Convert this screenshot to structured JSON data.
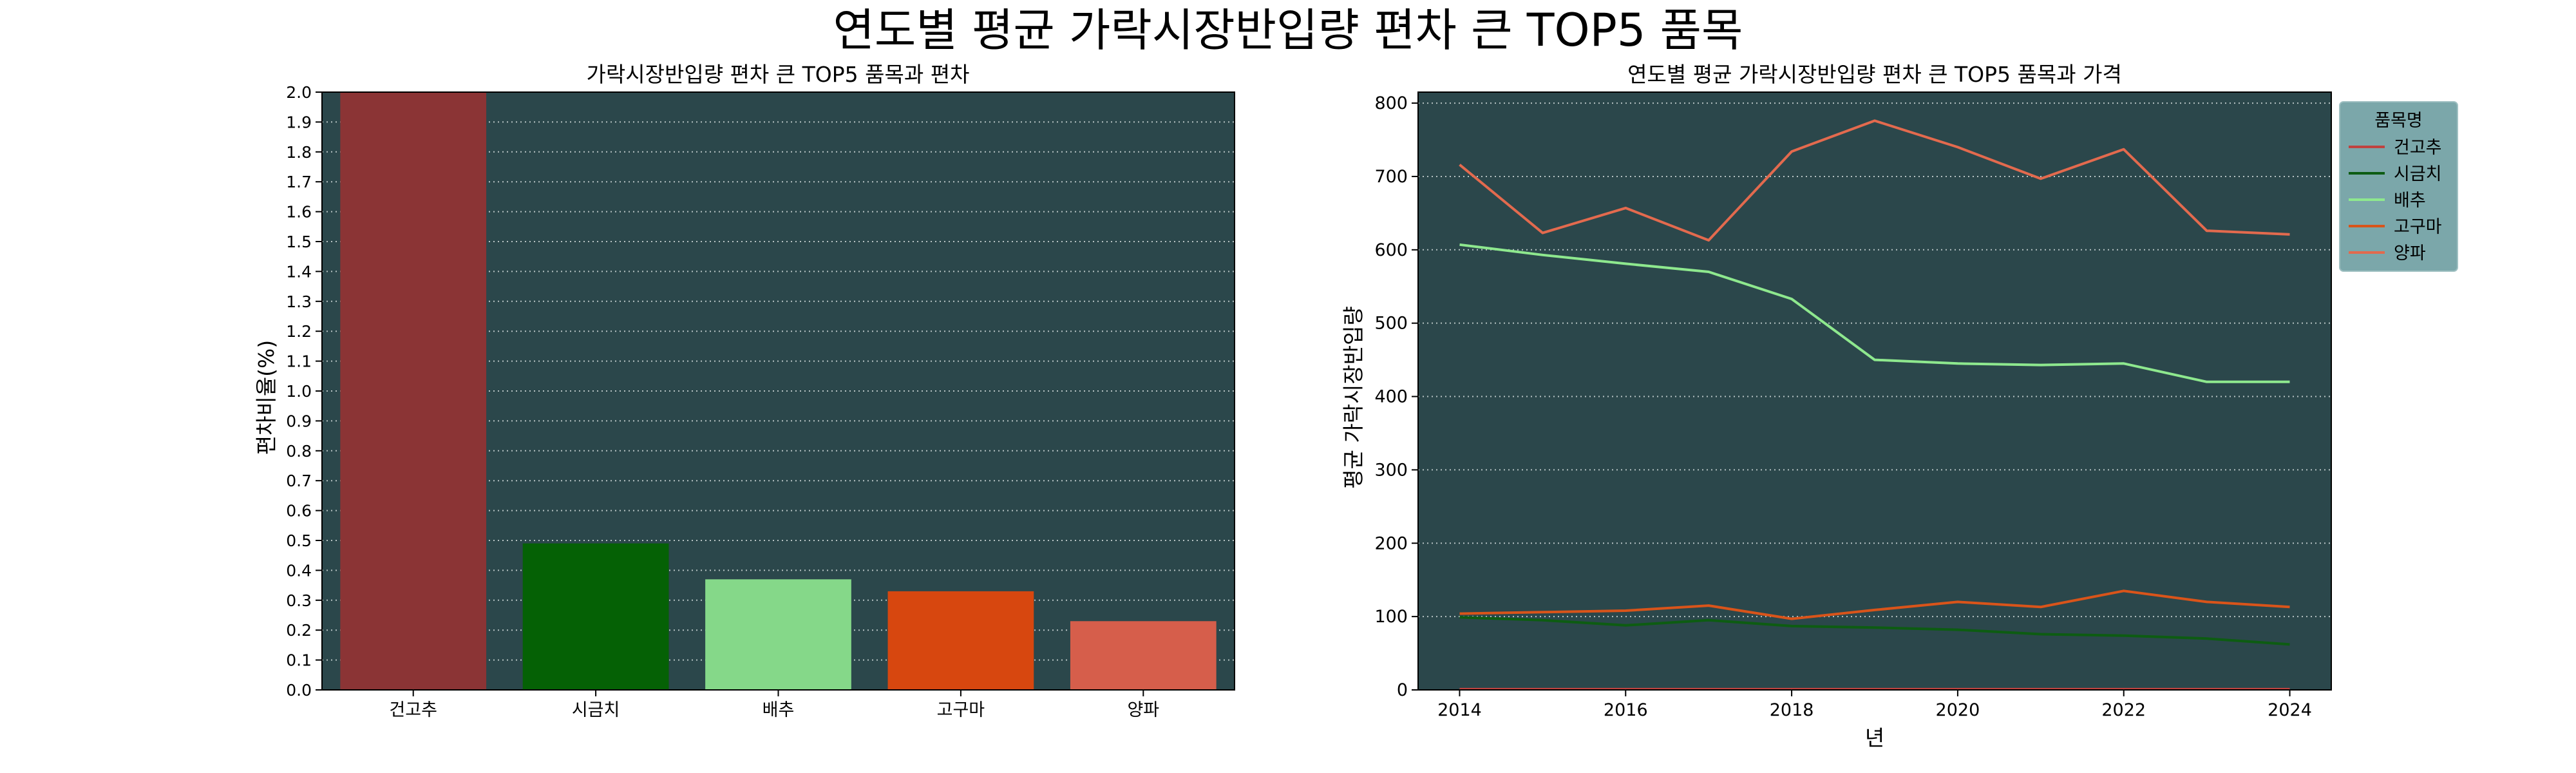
{
  "figure": {
    "title": "연도별 평균 가락시장반입량 편차 큰 TOP5 품목",
    "background": "#ffffff",
    "panel_background": "#2b474b",
    "grid_color": "#c8d2d2",
    "legend_background": "#7ba7aa"
  },
  "chart_data": [
    {
      "type": "bar",
      "title": "가락시장반입량 편차 큰 TOP5 품목과 편차",
      "xlabel": "",
      "ylabel": "편차비율(%)",
      "categories": [
        "건고추",
        "시금치",
        "배추",
        "고구마",
        "양파"
      ],
      "values": [
        2.0,
        0.49,
        0.37,
        0.33,
        0.23
      ],
      "colors": [
        "#8b3435",
        "#056105",
        "#85d889",
        "#d7470f",
        "#d65e4b"
      ],
      "ylim": [
        0,
        2.0
      ],
      "yticks": [
        "0.0",
        "0.1",
        "0.2",
        "0.3",
        "0.4",
        "0.5",
        "0.6",
        "0.7",
        "0.8",
        "0.9",
        "1.0",
        "1.1",
        "1.2",
        "1.3",
        "1.4",
        "1.5",
        "1.6",
        "1.7",
        "1.8",
        "1.9",
        "2.0"
      ],
      "grid": "y-dotted"
    },
    {
      "type": "line",
      "title": "연도별 평균 가락시장반입량 편차 큰 TOP5 품목과 가격",
      "xlabel": "년",
      "ylabel": "평균 가락시장반입량",
      "x": [
        2014,
        2015,
        2016,
        2017,
        2018,
        2019,
        2020,
        2021,
        2022,
        2023,
        2024
      ],
      "xlim": [
        2013.5,
        2024.5
      ],
      "xticks": [
        "2014",
        "2016",
        "2018",
        "2020",
        "2022",
        "2024"
      ],
      "ylim": [
        0,
        815
      ],
      "yticks": [
        "0",
        "100",
        "200",
        "300",
        "400",
        "500",
        "600",
        "700",
        "800"
      ],
      "grid": "y-dotted",
      "legend": {
        "title": "품목명",
        "position": "outside-top-right"
      },
      "series": [
        {
          "name": "건고추",
          "color": "#c0423f",
          "values": [
            1,
            1,
            1,
            1,
            1,
            1,
            1,
            1,
            1,
            1,
            1
          ]
        },
        {
          "name": "시금치",
          "color": "#0d5c12",
          "values": [
            99,
            95,
            88,
            95,
            87,
            85,
            82,
            76,
            74,
            70,
            62
          ]
        },
        {
          "name": "배추",
          "color": "#8ee88e",
          "values": [
            607,
            593,
            581,
            570,
            533,
            450,
            445,
            443,
            445,
            420,
            420
          ]
        },
        {
          "name": "고구마",
          "color": "#d9541a",
          "values": [
            104,
            106,
            108,
            115,
            97,
            109,
            120,
            113,
            135,
            120,
            113
          ]
        },
        {
          "name": "양파",
          "color": "#e36a4e",
          "values": [
            716,
            623,
            657,
            613,
            734,
            776,
            740,
            697,
            737,
            626,
            621
          ]
        }
      ]
    }
  ]
}
